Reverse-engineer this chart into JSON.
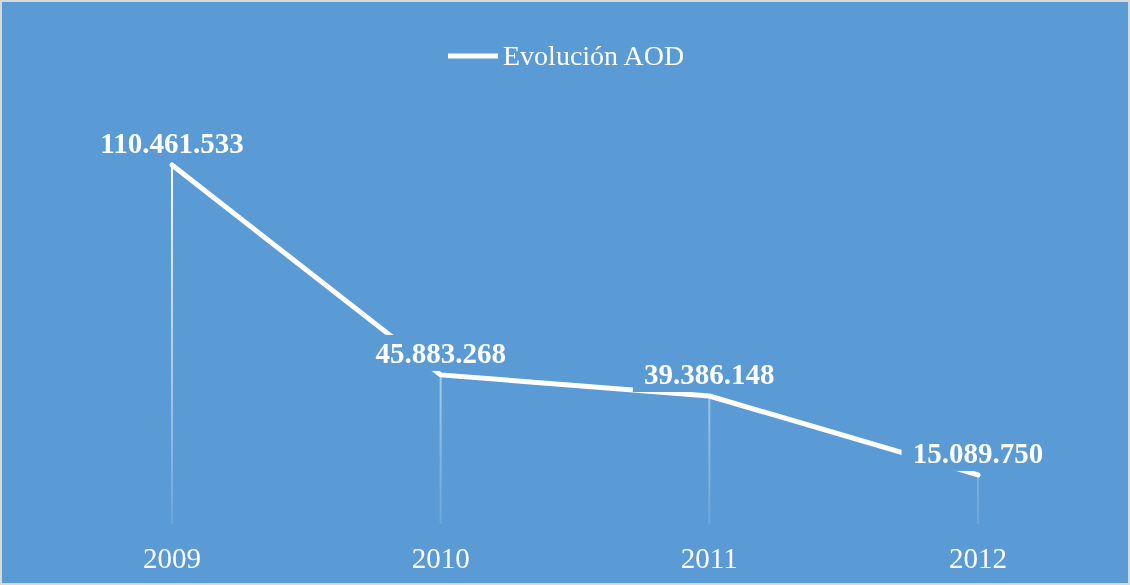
{
  "chart_data": {
    "type": "line",
    "categories": [
      "2009",
      "2010",
      "2011",
      "2012"
    ],
    "series": [
      {
        "name": "Evolución AOD",
        "color": "#ffffff",
        "values": [
          110461533,
          45883268,
          39386148,
          15089750
        ],
        "value_labels": [
          "110.461.533",
          "45.883.268",
          "39.386.148",
          "15.089.750"
        ]
      }
    ],
    "legend": "top",
    "marker": "none",
    "grid": "x"
  }
}
